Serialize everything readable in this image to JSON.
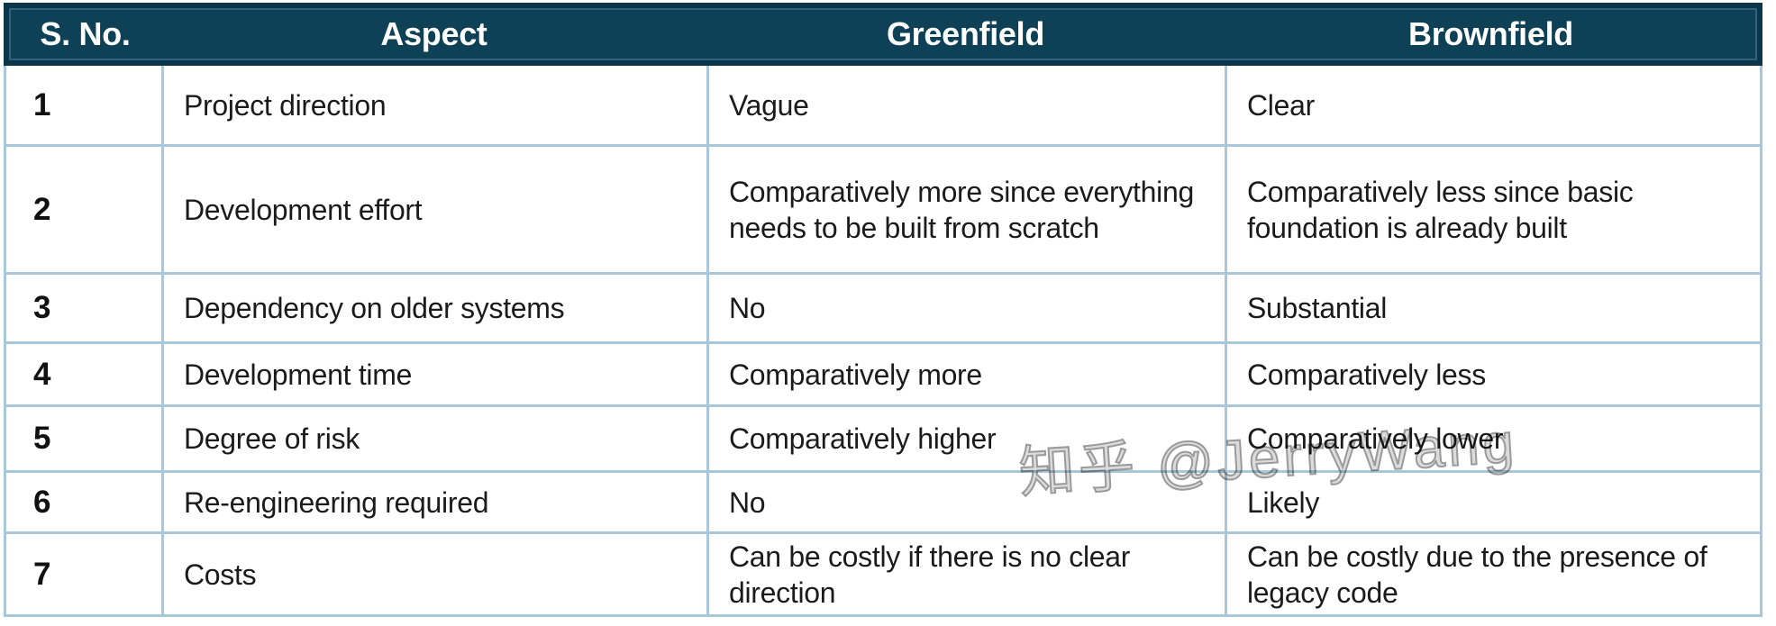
{
  "table": {
    "headers": [
      "S. No.",
      "Aspect",
      "Greenfield",
      "Brownfield"
    ],
    "rows": [
      {
        "no": "1",
        "aspect": "Project direction",
        "greenfield": "Vague",
        "brownfield": "Clear"
      },
      {
        "no": "2",
        "aspect": "Development effort",
        "greenfield": "Comparatively more since everything needs to be built from scratch",
        "brownfield": "Comparatively less since basic foundation is already built"
      },
      {
        "no": "3",
        "aspect": "Dependency on older systems",
        "greenfield": "No",
        "brownfield": "Substantial"
      },
      {
        "no": "4",
        "aspect": "Development time",
        "greenfield": "Comparatively more",
        "brownfield": "Comparatively less"
      },
      {
        "no": "5",
        "aspect": "Degree of risk",
        "greenfield": "Comparatively higher",
        "brownfield": "Comparatively lower"
      },
      {
        "no": "6",
        "aspect": "Re-engineering required",
        "greenfield": "No",
        "brownfield": "Likely"
      },
      {
        "no": "7",
        "aspect": "Costs",
        "greenfield": "Can be costly if there is no clear direction",
        "brownfield": "Can be costly due to the presence of legacy code"
      }
    ]
  },
  "watermark": {
    "text": "知乎 @JerryWang"
  },
  "colors": {
    "header_bg": "#0e4156",
    "header_border": "#0b3649",
    "header_text": "#ffffff",
    "cell_border": "#a9c7da",
    "body_text": "#1b1b1b",
    "watermark_gray": "#8c8c8c"
  }
}
